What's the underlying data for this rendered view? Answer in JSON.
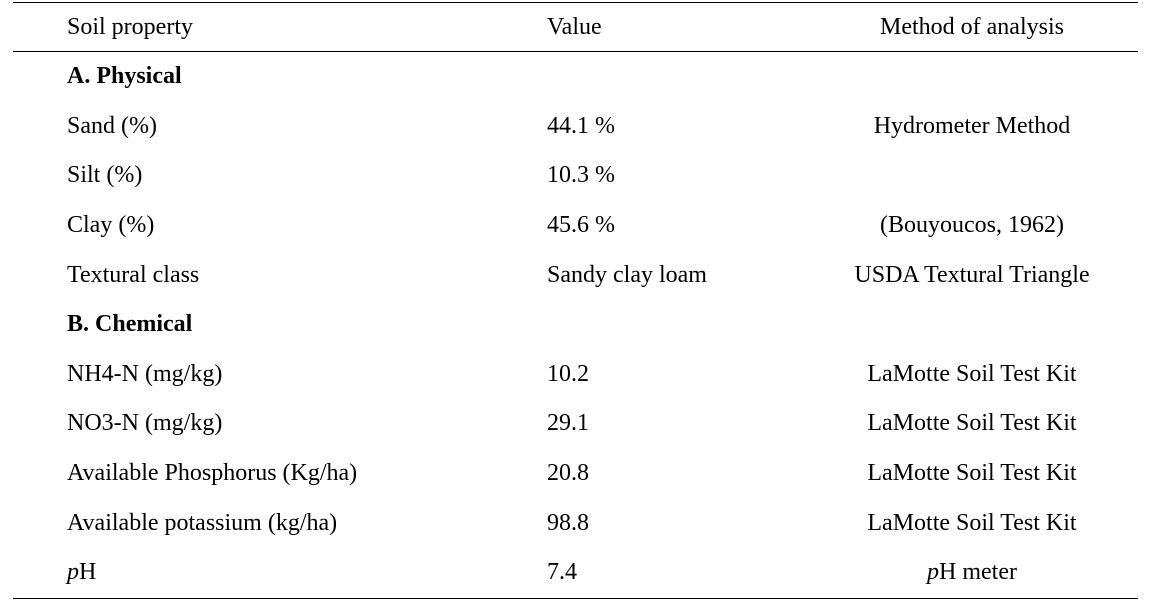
{
  "table": {
    "headers": {
      "property": "Soil property",
      "value": "Value",
      "method": "Method of analysis"
    },
    "sections": [
      {
        "title": "A. Physical",
        "rows": [
          {
            "property": "Sand (%)",
            "value": "44.1 %",
            "method": "Hydrometer Method"
          },
          {
            "property": "Silt (%)",
            "value": "10.3 %",
            "method": ""
          },
          {
            "property": "Clay (%)",
            "value": "45.6 %",
            "method": "(Bouyoucos, 1962)"
          },
          {
            "property": "Textural class",
            "value": "Sandy clay loam",
            "method": "USDA Textural Triangle"
          }
        ]
      },
      {
        "title": "B. Chemical",
        "rows": [
          {
            "property": "NH4-N (mg/kg)",
            "value": "10.2",
            "method": "LaMotte Soil Test Kit"
          },
          {
            "property": "NO3-N (mg/kg)",
            "value": "29.1",
            "method": "LaMotte Soil Test Kit"
          },
          {
            "property": "Available Phosphorus (Kg/ha)",
            "value": "20.8",
            "method": "LaMotte Soil Test Kit"
          },
          {
            "property": "Available potassium (kg/ha)",
            "value": "98.8",
            "method": "LaMotte Soil Test Kit"
          }
        ]
      }
    ],
    "ph_row": {
      "property_italic": "p",
      "property_rest": "H",
      "value": "7.4",
      "method_italic": "p",
      "method_rest": "H meter"
    }
  }
}
